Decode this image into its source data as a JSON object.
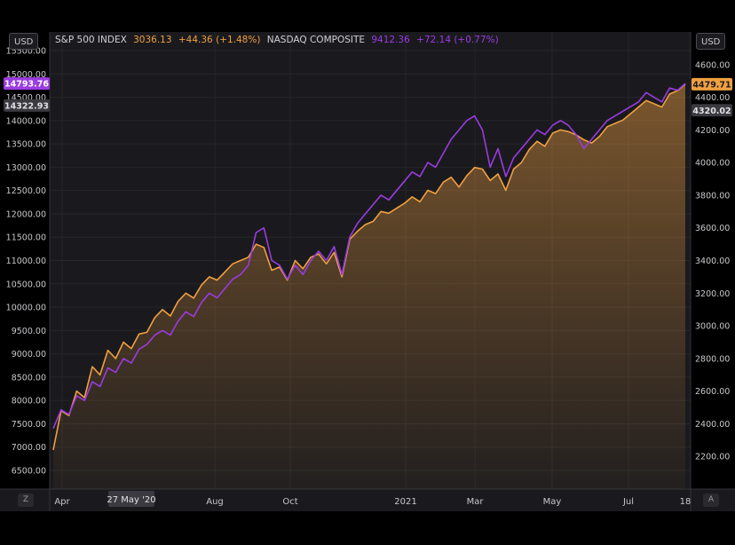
{
  "header": {
    "left_currency": "USD",
    "right_currency": "USD",
    "series1_name": "S&P 500 INDEX",
    "series1_value": "3036.13",
    "series1_change": "+44.36 (+1.48%)",
    "series2_name": "NASDAQ COMPOSITE",
    "series2_value": "9412.36",
    "series2_change": "+72.14 (+0.77%)"
  },
  "axis_buttons": {
    "left": "Z",
    "right": "A"
  },
  "crosshair_label": "27 May '20",
  "colors": {
    "sp500": "#f0a040",
    "nasdaq": "#9b3be0",
    "background": "#1a1a1e",
    "grid": "#262629",
    "text": "#c8c8cc"
  },
  "chart_data": {
    "type": "line",
    "x_labels": [
      "Apr",
      "27 May '20",
      "Aug",
      "Oct",
      "2021",
      "Mar",
      "May",
      "Jul",
      "18"
    ],
    "left_axis": {
      "range": [
        6100,
        15900
      ],
      "ticks": [
        "6500.00",
        "7000.00",
        "7500.00",
        "8000.00",
        "8500.00",
        "9000.00",
        "9500.00",
        "10000.00",
        "10500.00",
        "11000.00",
        "11500.00",
        "12000.00",
        "12500.00",
        "13000.00",
        "13500.00",
        "14000.00",
        "14500.00",
        "15000.00",
        "15500.00"
      ],
      "price_labels": [
        {
          "text": "14793.76",
          "value": 14793.76,
          "color": "#9b3be0"
        },
        {
          "text": "14322.93",
          "value": 14322.93,
          "color": "#3a3a40"
        }
      ]
    },
    "right_axis": {
      "range": [
        2000,
        4800
      ],
      "ticks": [
        "2200.00",
        "2400.00",
        "2600.00",
        "2800.00",
        "3000.00",
        "3200.00",
        "3400.00",
        "3600.00",
        "3800.00",
        "4000.00",
        "4200.00",
        "4400.00",
        "4600.00"
      ],
      "price_labels": [
        {
          "text": "4479.71",
          "value": 4479.71,
          "color": "#f0a040"
        },
        {
          "text": "4320.02",
          "value": 4320.02,
          "color": "#3a3a40"
        }
      ]
    },
    "grid": true,
    "series": [
      {
        "name": "S&P 500 INDEX",
        "axis": "right",
        "color": "#f0a040",
        "area": true,
        "values": [
          2240,
          2480,
          2450,
          2600,
          2560,
          2750,
          2700,
          2850,
          2800,
          2900,
          2860,
          2950,
          2960,
          3050,
          3100,
          3060,
          3150,
          3200,
          3170,
          3250,
          3300,
          3280,
          3330,
          3380,
          3400,
          3420,
          3500,
          3480,
          3340,
          3360,
          3280,
          3400,
          3350,
          3420,
          3440,
          3380,
          3450,
          3300,
          3530,
          3580,
          3620,
          3640,
          3700,
          3690,
          3720,
          3750,
          3790,
          3760,
          3830,
          3810,
          3880,
          3910,
          3850,
          3920,
          3970,
          3960,
          3890,
          3930,
          3830,
          3960,
          4000,
          4080,
          4130,
          4100,
          4180,
          4200,
          4190,
          4170,
          4140,
          4120,
          4160,
          4220,
          4240,
          4260,
          4300,
          4340,
          4380,
          4360,
          4340,
          4420,
          4440,
          4480
        ]
      },
      {
        "name": "NASDAQ COMPOSITE",
        "axis": "left",
        "color": "#9b3be0",
        "area": false,
        "values": [
          7400,
          7800,
          7700,
          8100,
          8000,
          8400,
          8300,
          8700,
          8600,
          8900,
          8800,
          9100,
          9200,
          9400,
          9500,
          9400,
          9700,
          9900,
          9800,
          10100,
          10300,
          10200,
          10400,
          10600,
          10700,
          10900,
          11600,
          11700,
          11000,
          10900,
          10600,
          10900,
          10700,
          11000,
          11200,
          11000,
          11300,
          10700,
          11500,
          11800,
          12000,
          12200,
          12400,
          12300,
          12500,
          12700,
          12900,
          12800,
          13100,
          13000,
          13300,
          13600,
          13800,
          14000,
          14100,
          13800,
          13000,
          13400,
          12800,
          13200,
          13400,
          13600,
          13800,
          13700,
          13900,
          14000,
          13900,
          13700,
          13400,
          13600,
          13800,
          14000,
          14100,
          14200,
          14300,
          14400,
          14600,
          14500,
          14400,
          14700,
          14650,
          14793.76
        ]
      }
    ]
  }
}
